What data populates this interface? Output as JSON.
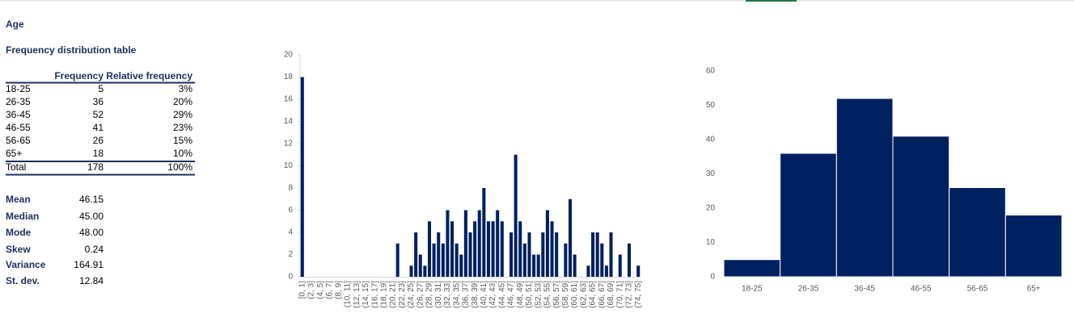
{
  "title": "Age",
  "table": {
    "title": "Frequency distribution table",
    "headers": [
      "Frequency",
      "Relative frequency"
    ],
    "rows": [
      [
        "18-25",
        "5",
        "3%"
      ],
      [
        "26-35",
        "36",
        "20%"
      ],
      [
        "36-45",
        "52",
        "29%"
      ],
      [
        "46-55",
        "41",
        "23%"
      ],
      [
        "56-65",
        "26",
        "15%"
      ],
      [
        "65+",
        "18",
        "10%"
      ]
    ],
    "total": [
      "Total",
      "178",
      "100%"
    ]
  },
  "stats": [
    [
      "Mean",
      "46.15"
    ],
    [
      "Median",
      "45.00"
    ],
    [
      "Mode",
      "48.00"
    ],
    [
      "Skew",
      "0.24"
    ],
    [
      "Variance",
      "164.91"
    ],
    [
      "St. dev.",
      "12.84"
    ]
  ],
  "chart_data": [
    {
      "type": "bar",
      "color": "#002060",
      "categories": [
        "[0, 1]",
        null,
        "(2, 3]",
        null,
        "(4, 5]",
        null,
        "(6, 7]",
        null,
        "(8, 9]",
        null,
        "(10, 11]",
        null,
        "(12, 13]",
        null,
        "(14, 15]",
        null,
        "(16, 17]",
        null,
        "(18, 19]",
        null,
        "(20, 21]",
        null,
        "(22, 23]",
        null,
        "(24, 25]",
        null,
        "(26, 27]",
        null,
        "(28, 29]",
        null,
        "(30, 31]",
        null,
        "(32, 33]",
        null,
        "(34, 35]",
        null,
        "(36, 37]",
        null,
        "(38, 39]",
        null,
        "(40, 41]",
        null,
        "(42, 43]",
        null,
        "(44, 45]",
        null,
        "(46, 47]",
        null,
        "(48, 49]",
        null,
        "(50, 51]",
        null,
        "(52, 53]",
        null,
        "(54, 55]",
        null,
        "(56, 57]",
        null,
        "(58, 59]",
        null,
        "(60, 61]",
        null,
        "(62, 63]",
        null,
        "(64, 65]",
        null,
        "(66, 67]",
        null,
        "(68, 69]",
        null,
        "(70, 71]",
        null,
        "(72, 73]",
        null,
        "(74, 75]"
      ],
      "values": [
        18,
        0,
        0,
        0,
        0,
        0,
        0,
        0,
        0,
        0,
        0,
        0,
        0,
        0,
        0,
        0,
        0,
        0,
        0,
        0,
        0,
        3,
        0,
        0,
        1,
        4,
        2,
        1,
        5,
        3,
        4,
        3,
        6,
        5,
        3,
        2,
        6,
        4,
        5,
        6,
        8,
        5,
        5,
        6,
        5,
        0,
        4,
        11,
        5,
        3,
        4,
        2,
        2,
        4,
        6,
        5,
        4,
        0,
        3,
        7,
        2,
        0,
        0,
        1,
        4,
        4,
        3,
        1,
        4,
        0,
        2,
        0,
        3,
        0,
        1
      ],
      "ylim": [
        0,
        20
      ],
      "yticks": [
        0,
        2,
        4,
        6,
        8,
        10,
        12,
        14,
        16,
        18,
        20
      ]
    },
    {
      "type": "bar",
      "color": "#002060",
      "categories": [
        "18-25",
        "26-35",
        "36-45",
        "46-55",
        "56-65",
        "65+"
      ],
      "values": [
        5,
        36,
        52,
        41,
        26,
        18
      ],
      "ylim": [
        0,
        60
      ],
      "yticks": [
        0,
        10,
        20,
        30,
        40,
        50,
        60
      ]
    }
  ]
}
